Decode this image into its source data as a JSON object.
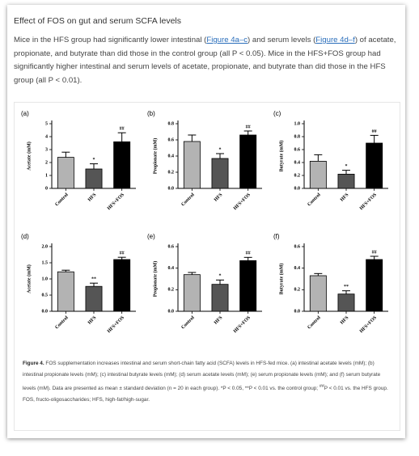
{
  "heading": "Effect of FOS on gut and serum SCFA levels",
  "paragraph": [
    "Mice in the HFS group had significantly lower intestinal (",
    "Figure 4a–c",
    ") and serum levels (",
    "Figure 4d–f",
    ") of acetate, propionate, and butyrate than did those in the control group (all P < 0.05). Mice in the HFS+FOS group had significantly higher intestinal and serum levels of acetate, propionate, and butyrate than did those in the HFS group (all P < 0.01)."
  ],
  "chart_data": [
    {
      "type": "bar",
      "panel": "(a)",
      "ylabel": "Acetate (mM)",
      "categories": [
        "Control",
        "HFS",
        "HFS+FOS"
      ],
      "values": [
        2.4,
        1.5,
        3.6
      ],
      "errors": [
        0.4,
        0.4,
        0.7
      ],
      "colors": [
        "#b3b3b3",
        "#555555",
        "#000000"
      ],
      "annotations": [
        null,
        "*",
        "##"
      ],
      "ylim": [
        0,
        5
      ],
      "yticks": [
        0,
        1,
        2,
        3,
        4,
        5
      ]
    },
    {
      "type": "bar",
      "panel": "(b)",
      "ylabel": "Propionate (mM)",
      "categories": [
        "Control",
        "HFS",
        "HFS+FOS"
      ],
      "values": [
        0.58,
        0.37,
        0.66
      ],
      "errors": [
        0.08,
        0.06,
        0.05
      ],
      "colors": [
        "#b3b3b3",
        "#555555",
        "#000000"
      ],
      "annotations": [
        null,
        "*",
        "##"
      ],
      "ylim": [
        0,
        0.8
      ],
      "yticks": [
        {
          "value": 0,
          "label": "0.0"
        },
        0.2,
        0.4,
        0.6,
        0.8
      ]
    },
    {
      "type": "bar",
      "panel": "(c)",
      "ylabel": "Butyrate (mM)",
      "categories": [
        "Control",
        "HFS",
        "HFS+FOS"
      ],
      "values": [
        0.42,
        0.22,
        0.7
      ],
      "errors": [
        0.1,
        0.06,
        0.12
      ],
      "colors": [
        "#b3b3b3",
        "#555555",
        "#000000"
      ],
      "annotations": [
        null,
        "*",
        "##"
      ],
      "ylim": [
        0,
        1
      ],
      "yticks": [
        {
          "value": 0,
          "label": "0.0"
        },
        0.2,
        0.4,
        0.6,
        0.8,
        {
          "value": 1,
          "label": "1.0"
        }
      ]
    },
    {
      "type": "bar",
      "panel": "(d)",
      "ylabel": "Acetate (mM)",
      "categories": [
        "Control",
        "HFS",
        "HFS+FOS"
      ],
      "values": [
        1.22,
        0.77,
        1.6
      ],
      "errors": [
        0.05,
        0.1,
        0.07
      ],
      "colors": [
        "#b3b3b3",
        "#555555",
        "#000000"
      ],
      "annotations": [
        null,
        "**",
        "##"
      ],
      "ylim": [
        0,
        2
      ],
      "yticks": [
        {
          "value": 0,
          "label": "0.0"
        },
        0.5,
        {
          "value": 1,
          "label": "1.0"
        },
        1.5,
        {
          "value": 2,
          "label": "2.0"
        }
      ]
    },
    {
      "type": "bar",
      "panel": "(e)",
      "ylabel": "Propionate (mM)",
      "categories": [
        "Control",
        "HFS",
        "HFS+FOS"
      ],
      "values": [
        0.34,
        0.25,
        0.47
      ],
      "errors": [
        0.02,
        0.04,
        0.03
      ],
      "colors": [
        "#b3b3b3",
        "#555555",
        "#000000"
      ],
      "annotations": [
        null,
        "*",
        "##"
      ],
      "ylim": [
        0,
        0.6
      ],
      "yticks": [
        {
          "value": 0,
          "label": "0.0"
        },
        0.2,
        0.4,
        0.6
      ]
    },
    {
      "type": "bar",
      "panel": "(f)",
      "ylabel": "Butyrate (mM)",
      "categories": [
        "Control",
        "HFS",
        "HFS+FOS"
      ],
      "values": [
        0.33,
        0.16,
        0.48
      ],
      "errors": [
        0.02,
        0.03,
        0.03
      ],
      "colors": [
        "#b3b3b3",
        "#555555",
        "#000000"
      ],
      "annotations": [
        null,
        "**",
        "##"
      ],
      "ylim": [
        0,
        0.6
      ],
      "yticks": [
        {
          "value": 0,
          "label": "0.0"
        },
        0.2,
        0.4,
        0.6
      ]
    }
  ],
  "caption": [
    "Figure 4.",
    " FOS supplementation increases intestinal and serum short-chain fatty acid (SCFA) levels in HFS-fed mice. (a) intestinal acetate levels (mM); (b) intestinal propionate levels (mM); (c) intestinal butyrate levels (mM); (d) serum acetate levels (mM); (e) serum propionate levels (mM); and (f) serum butyrate levels (mM). Data are presented as mean ± standard deviation (n = 20 in each group). *P < 0.05, **P < 0.01 vs. the control group; ",
    "##",
    "P < 0.01 vs. the HFS group. FOS, fructo-oligosaccharides; HFS, high-fat/high-sugar."
  ]
}
